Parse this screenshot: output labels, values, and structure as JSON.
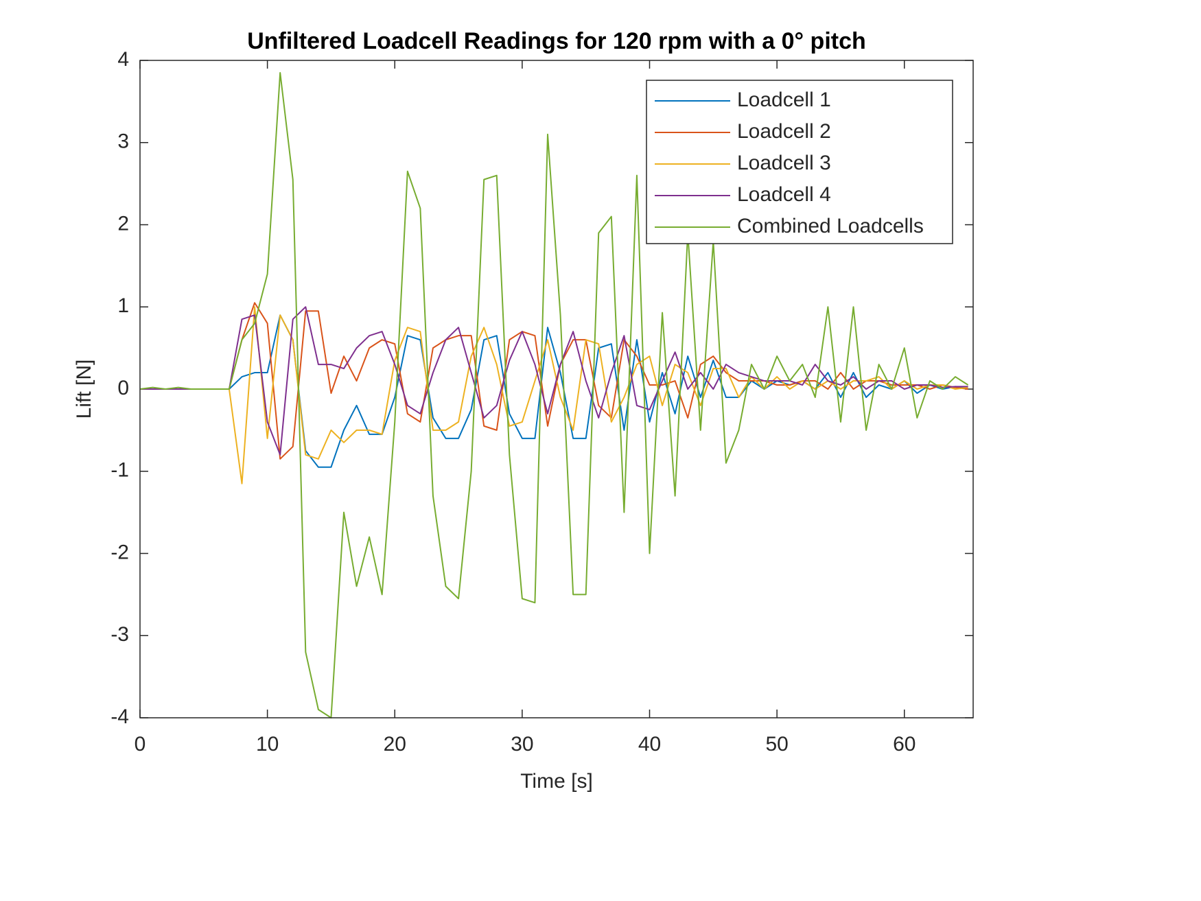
{
  "chart_data": {
    "type": "line",
    "title": "Unfiltered Loadcell Readings for 120 rpm with a 0° pitch",
    "x_label": "Time [s]",
    "y_label": "Lift [N]",
    "x": [
      0,
      1,
      2,
      3,
      4,
      5,
      6,
      7,
      8,
      9,
      10,
      11,
      12,
      13,
      14,
      15,
      16,
      17,
      18,
      19,
      20,
      21,
      22,
      23,
      24,
      25,
      26,
      27,
      28,
      29,
      30,
      31,
      32,
      33,
      34,
      35,
      36,
      37,
      38,
      39,
      40,
      41,
      42,
      43,
      44,
      45,
      46,
      47,
      48,
      49,
      50,
      51,
      52,
      53,
      54,
      55,
      56,
      57,
      58,
      59,
      60,
      61,
      62,
      63,
      64,
      65
    ],
    "series": [
      {
        "name": "Loadcell 1",
        "color": "#0072bd",
        "values": [
          0,
          0,
          0,
          0,
          0,
          0,
          0,
          0,
          0.15,
          0.2,
          0.2,
          0.9,
          0.6,
          -0.75,
          -0.95,
          -0.95,
          -0.5,
          -0.2,
          -0.55,
          -0.55,
          -0.1,
          0.65,
          0.6,
          -0.35,
          -0.6,
          -0.6,
          -0.25,
          0.6,
          0.65,
          -0.3,
          -0.6,
          -0.6,
          0.75,
          0.2,
          -0.6,
          -0.6,
          0.5,
          0.55,
          -0.5,
          0.6,
          -0.4,
          0.2,
          -0.3,
          0.4,
          -0.1,
          0.35,
          -0.1,
          -0.1,
          0.1,
          0,
          0.1,
          0.05,
          0.1,
          0,
          0.2,
          -0.1,
          0.2,
          -0.1,
          0.05,
          0,
          0.1,
          -0.05,
          0.05,
          0,
          0.03,
          0.02
        ]
      },
      {
        "name": "Loadcell 2",
        "color": "#d95319",
        "values": [
          0,
          0,
          0,
          0,
          0,
          0,
          0,
          0,
          0.6,
          1.05,
          0.8,
          -0.85,
          -0.7,
          0.95,
          0.95,
          -0.05,
          0.4,
          0.1,
          0.5,
          0.6,
          0.55,
          -0.3,
          -0.4,
          0.5,
          0.6,
          0.65,
          0.65,
          -0.45,
          -0.5,
          0.6,
          0.7,
          0.65,
          -0.45,
          0.3,
          0.6,
          0.6,
          -0.2,
          -0.35,
          0.6,
          0.4,
          0.05,
          0.05,
          0.1,
          -0.35,
          0.3,
          0.4,
          0.2,
          0.1,
          0.1,
          0.1,
          0.05,
          0.05,
          0.1,
          0.1,
          0,
          0.2,
          0,
          0.1,
          0.1,
          0.05,
          0.05,
          0.05,
          0,
          0.05,
          0.02,
          0
        ]
      },
      {
        "name": "Loadcell 3",
        "color": "#edb120",
        "values": [
          0,
          0,
          0,
          0,
          0,
          0,
          0,
          0,
          -1.15,
          1,
          -0.6,
          0.9,
          0.6,
          -0.8,
          -0.85,
          -0.5,
          -0.65,
          -0.5,
          -0.5,
          -0.55,
          0.35,
          0.75,
          0.7,
          -0.5,
          -0.5,
          -0.4,
          0.4,
          0.75,
          0.3,
          -0.45,
          -0.4,
          0.1,
          0.6,
          -0.1,
          -0.5,
          0.6,
          0.55,
          -0.4,
          -0.1,
          0.3,
          0.4,
          -0.2,
          0.3,
          0.2,
          -0.2,
          0.25,
          0.25,
          -0.1,
          0.15,
          0,
          0.15,
          0,
          0.1,
          0,
          0.1,
          0,
          0.1,
          0.1,
          0.15,
          0,
          0.1,
          0,
          0.05,
          0.05,
          0,
          0.02
        ]
      },
      {
        "name": "Loadcell 4",
        "color": "#7e2f8e",
        "values": [
          0,
          0,
          0,
          0,
          0,
          0,
          0,
          0,
          0.85,
          0.9,
          -0.4,
          -0.8,
          0.85,
          1,
          0.3,
          0.3,
          0.25,
          0.5,
          0.65,
          0.7,
          0.3,
          -0.2,
          -0.3,
          0.2,
          0.6,
          0.75,
          0.2,
          -0.35,
          -0.2,
          0.35,
          0.7,
          0.3,
          -0.3,
          0.3,
          0.7,
          0.1,
          -0.35,
          0.2,
          0.65,
          -0.2,
          -0.25,
          0.1,
          0.45,
          0,
          0.2,
          0,
          0.3,
          0.2,
          0.15,
          0.1,
          0.1,
          0.1,
          0.05,
          0.3,
          0.1,
          0.05,
          0.15,
          0,
          0.1,
          0.1,
          0,
          0.05,
          0.05,
          0.02,
          0.03,
          0.03
        ]
      },
      {
        "name": "Combined Loadcells",
        "color": "#77ac30",
        "values": [
          0,
          0.02,
          0,
          0.02,
          0,
          0,
          0,
          0,
          0.6,
          0.8,
          1.4,
          3.85,
          2.55,
          -3.2,
          -3.9,
          -4,
          -1.5,
          -2.4,
          -1.8,
          -2.5,
          -0.4,
          2.65,
          2.2,
          -1.3,
          -2.4,
          -2.55,
          -1,
          2.55,
          2.6,
          -0.8,
          -2.55,
          -2.6,
          3.1,
          0.9,
          -2.5,
          -2.5,
          1.9,
          2.1,
          -1.5,
          2.6,
          -2,
          0.93,
          -1.3,
          1.9,
          -0.5,
          1.8,
          -0.9,
          -0.5,
          0.3,
          0,
          0.4,
          0.1,
          0.3,
          -0.1,
          1,
          -0.4,
          1,
          -0.5,
          0.3,
          0,
          0.5,
          -0.35,
          0.1,
          0,
          0.15,
          0.05
        ]
      }
    ],
    "xlim": [
      0,
      65.4
    ],
    "ylim": [
      -4,
      4
    ],
    "xticks": [
      0,
      10,
      20,
      30,
      40,
      50,
      60
    ],
    "yticks": [
      -4,
      -3,
      -2,
      -1,
      0,
      1,
      2,
      3,
      4
    ],
    "legend": "upper right",
    "grid": false
  }
}
